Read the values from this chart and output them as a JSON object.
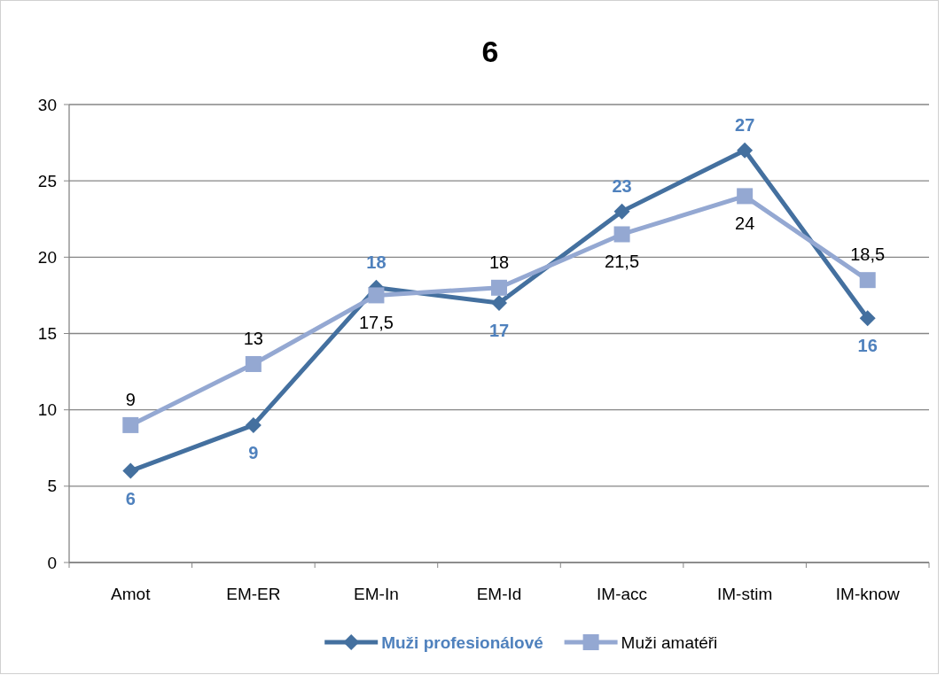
{
  "chart_data": {
    "type": "line",
    "title": "6",
    "categories": [
      "Amot",
      "EM-ER",
      "EM-In",
      "EM-Id",
      "IM-acc",
      "IM-stim",
      "IM-know"
    ],
    "series": [
      {
        "name": "Muži profesionálové",
        "color": "#44709f",
        "marker": "diamond",
        "values": [
          6,
          9,
          18,
          17,
          23,
          27,
          16
        ],
        "value_labels": [
          "6",
          "9",
          "18",
          "17",
          "23",
          "27",
          "16"
        ]
      },
      {
        "name": "Muži amatéři",
        "color": "#94a8d2",
        "marker": "square",
        "values": [
          9,
          13,
          17.5,
          18,
          21.5,
          24,
          18.5
        ],
        "value_labels": [
          "9",
          "13",
          "17,5",
          "18",
          "21,5",
          "24",
          "18,5"
        ]
      }
    ],
    "ylim": [
      0,
      30
    ],
    "yticks": [
      0,
      5,
      10,
      15,
      20,
      25,
      30
    ],
    "grid": "y",
    "legend": "bottom"
  }
}
